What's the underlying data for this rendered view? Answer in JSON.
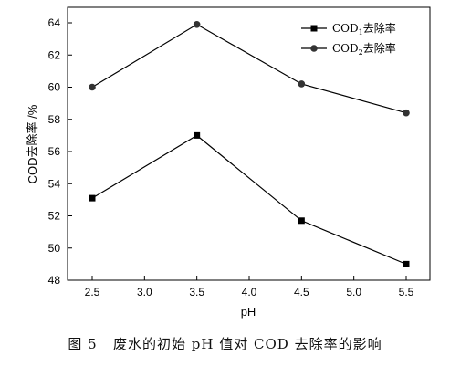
{
  "chart_data": {
    "type": "line",
    "xlabel": "pH",
    "ylabel": "COD去除率 /%",
    "xlim": [
      2.5,
      5.5
    ],
    "ylim": [
      48,
      64
    ],
    "xticks": [
      "2.5",
      "3.0",
      "3.5",
      "4.0",
      "4.5",
      "5.0",
      "5.5"
    ],
    "yticks": [
      "48",
      "50",
      "52",
      "54",
      "56",
      "58",
      "60",
      "62",
      "64"
    ],
    "x": [
      2.5,
      3.5,
      4.5,
      5.5
    ],
    "series": [
      {
        "name_prefix": "COD",
        "name_sub": "1",
        "name_suffix": "去除率",
        "marker": "square",
        "color": "#000000",
        "values": [
          53.1,
          57.0,
          51.7,
          49.0
        ]
      },
      {
        "name_prefix": "COD",
        "name_sub": "2",
        "name_suffix": "去除率",
        "marker": "circle",
        "color": "#000000",
        "values": [
          60.0,
          63.9,
          60.2,
          58.4
        ]
      }
    ],
    "legend_position": "top-right",
    "grid": false
  },
  "caption": "图 5   废水的初始 pH 值对 COD 去除率的影响"
}
